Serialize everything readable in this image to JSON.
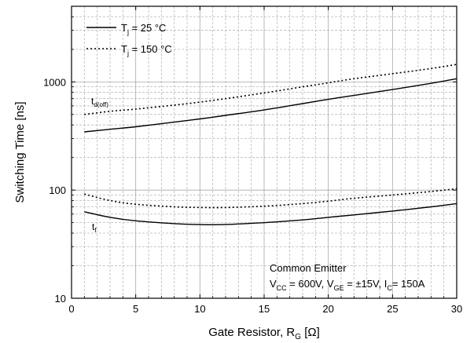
{
  "chart_data": {
    "type": "line",
    "xlabel": "Gate Resistor, R",
    "xlabel_sub": "G",
    "xlabel_unit": " [Ω]",
    "ylabel": "Switching Time [ns]",
    "xlim": [
      0,
      30
    ],
    "ylim": [
      10,
      5000
    ],
    "y_scale": "log",
    "grid": true,
    "x_ticks": [
      0,
      5,
      10,
      15,
      20,
      25,
      30
    ],
    "x_tick_labels": [
      "0",
      "5",
      "10",
      "15",
      "20",
      "25",
      "30"
    ],
    "y_ticks": [
      10,
      100,
      1000
    ],
    "y_tick_labels": [
      "10",
      "100",
      "1000"
    ],
    "legend": {
      "placement": "top-left",
      "entries": [
        {
          "label": "T",
          "sub": "j",
          "text": " = 25 °C",
          "style": "solid"
        },
        {
          "label": "T",
          "sub": "j",
          "text": " = 150 °C",
          "style": "dotted"
        }
      ]
    },
    "curve_labels": [
      {
        "main": "t",
        "sub": "d(off)"
      },
      {
        "main": "t",
        "sub": "f"
      }
    ],
    "annotation": {
      "title": "Common Emitter",
      "line": [
        {
          "t": "V",
          "s": false
        },
        {
          "t": "CC",
          "s": true
        },
        {
          "t": " = 600V, V",
          "s": false
        },
        {
          "t": "GE",
          "s": true
        },
        {
          "t": " = ±15V, I",
          "s": false
        },
        {
          "t": "C",
          "s": true
        },
        {
          "t": "= 150A",
          "s": false
        }
      ]
    },
    "series": [
      {
        "group": "d(off)",
        "style": "dotted",
        "x": [
          1,
          3,
          5,
          8,
          10,
          12,
          15,
          18,
          20,
          22,
          25,
          28,
          30
        ],
        "y": [
          500,
          535,
          560,
          610,
          650,
          700,
          790,
          900,
          980,
          1070,
          1190,
          1330,
          1450
        ]
      },
      {
        "group": "d(off)",
        "style": "solid",
        "x": [
          1,
          3,
          5,
          8,
          10,
          12,
          15,
          18,
          20,
          22,
          25,
          28,
          30
        ],
        "y": [
          345,
          365,
          385,
          425,
          455,
          490,
          550,
          630,
          690,
          750,
          850,
          970,
          1070
        ]
      },
      {
        "group": "f",
        "style": "dotted",
        "x": [
          1,
          3,
          5,
          8,
          10,
          12,
          15,
          18,
          20,
          22,
          25,
          28,
          30
        ],
        "y": [
          92,
          80,
          74,
          70,
          69,
          69,
          71,
          75,
          79,
          84,
          90,
          97,
          103
        ]
      },
      {
        "group": "f",
        "style": "solid",
        "x": [
          1,
          3,
          5,
          8,
          10,
          12,
          15,
          18,
          20,
          22,
          25,
          28,
          30
        ],
        "y": [
          63,
          56,
          52,
          49,
          48,
          48,
          50,
          53,
          56,
          59,
          64,
          70,
          75
        ]
      }
    ]
  }
}
